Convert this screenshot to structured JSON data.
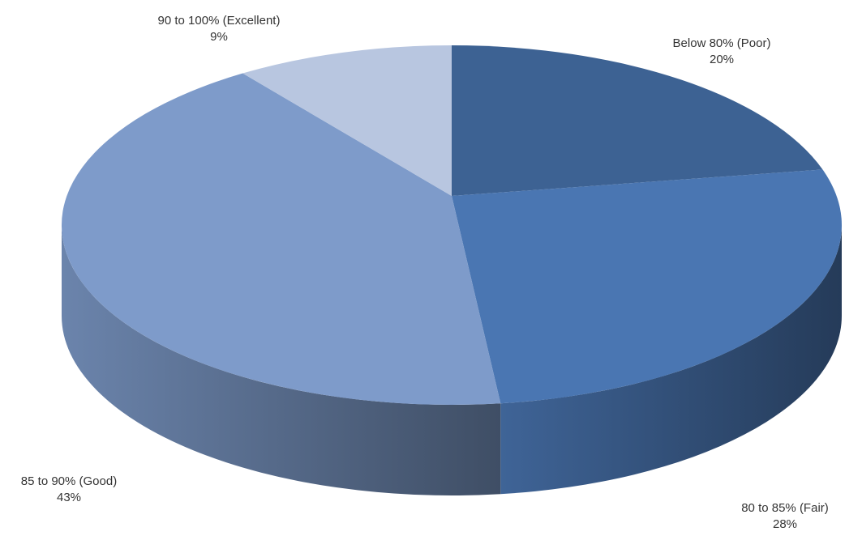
{
  "chart_data": {
    "type": "pie",
    "categories": [
      "Below 80% (Poor)",
      "80 to 85% (Fair)",
      "85 to 90% (Good)",
      "90 to 100% (Excellent)"
    ],
    "values": [
      20,
      28,
      43,
      9
    ],
    "value_labels": [
      "20%",
      "28%",
      "43%",
      "9%"
    ],
    "colors": [
      "#3d6293",
      "#4a76b2",
      "#7e9bca",
      "#b8c6e0"
    ]
  }
}
